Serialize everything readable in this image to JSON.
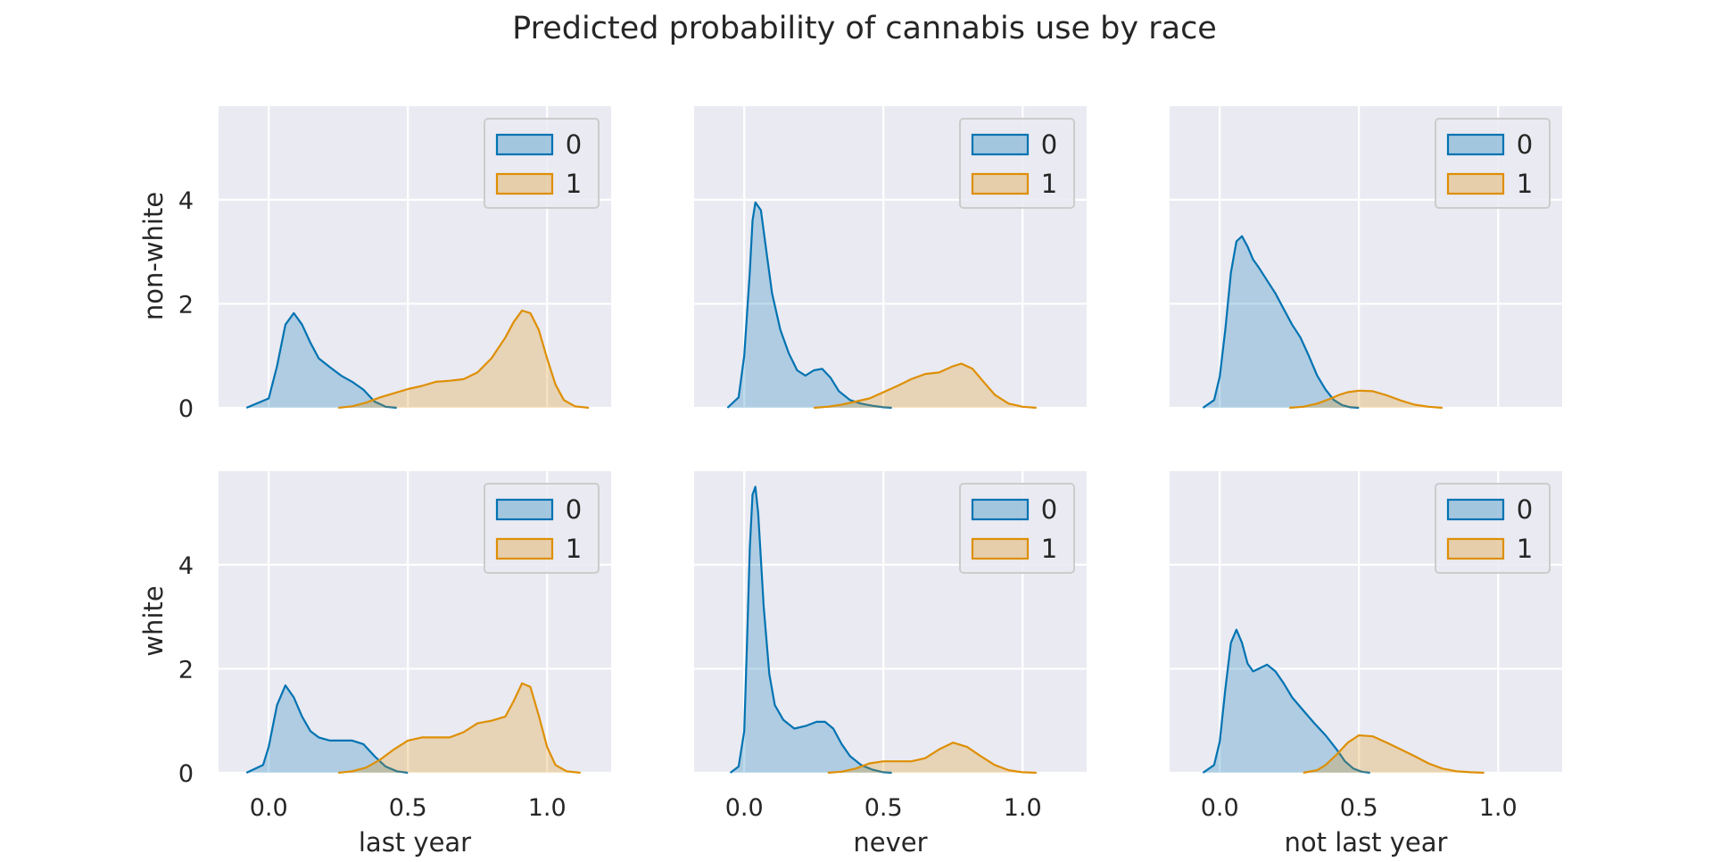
{
  "title": "Predicted probability of cannabis use by race",
  "row_labels": [
    "non-white",
    "white"
  ],
  "col_labels": [
    "last year",
    "never",
    "not last year"
  ],
  "colors": {
    "0": "#0173b2",
    "1": "#de8f05",
    "panel_bg": "#eaeaf2",
    "grid": "#ffffff"
  },
  "chart_data": {
    "type": "area",
    "kind": "kde-facet-grid",
    "title": "Predicted probability of cannabis use by race",
    "xlim": [
      -0.18,
      1.23
    ],
    "ylim": [
      0,
      5.8
    ],
    "xticks": [
      0.0,
      0.5,
      1.0
    ],
    "xtick_labels": [
      "0.0",
      "0.5",
      "1.0"
    ],
    "yticks": [
      0,
      2,
      4
    ],
    "ytick_labels": [
      "0",
      "2",
      "4"
    ],
    "grid": true,
    "legend_placement": "top-right",
    "legend_entries": [
      "0",
      "1"
    ],
    "panels": [
      {
        "row": "non-white",
        "col": "last year",
        "series": [
          {
            "name": "0",
            "x": [
              -0.08,
              0.0,
              0.03,
              0.06,
              0.09,
              0.12,
              0.15,
              0.18,
              0.22,
              0.26,
              0.3,
              0.34,
              0.38,
              0.42,
              0.46
            ],
            "y": [
              0,
              0.18,
              0.8,
              1.6,
              1.82,
              1.6,
              1.25,
              0.95,
              0.78,
              0.62,
              0.5,
              0.35,
              0.12,
              0.02,
              0
            ]
          },
          {
            "name": "1",
            "x": [
              0.25,
              0.3,
              0.35,
              0.4,
              0.45,
              0.5,
              0.55,
              0.6,
              0.65,
              0.7,
              0.75,
              0.8,
              0.85,
              0.88,
              0.91,
              0.94,
              0.97,
              1.0,
              1.03,
              1.06,
              1.1,
              1.15
            ],
            "y": [
              0,
              0.03,
              0.1,
              0.2,
              0.28,
              0.36,
              0.42,
              0.5,
              0.52,
              0.55,
              0.68,
              0.95,
              1.35,
              1.65,
              1.87,
              1.82,
              1.5,
              0.95,
              0.45,
              0.15,
              0.03,
              0
            ]
          }
        ]
      },
      {
        "row": "non-white",
        "col": "never",
        "series": [
          {
            "name": "0",
            "x": [
              -0.06,
              -0.02,
              0.0,
              0.02,
              0.03,
              0.04,
              0.06,
              0.08,
              0.1,
              0.13,
              0.16,
              0.19,
              0.22,
              0.25,
              0.28,
              0.31,
              0.34,
              0.38,
              0.42,
              0.46,
              0.5,
              0.53
            ],
            "y": [
              0,
              0.2,
              1.0,
              2.6,
              3.6,
              3.95,
              3.8,
              3.0,
              2.2,
              1.5,
              1.05,
              0.72,
              0.62,
              0.72,
              0.75,
              0.58,
              0.32,
              0.15,
              0.08,
              0.04,
              0.01,
              0
            ]
          },
          {
            "name": "1",
            "x": [
              0.25,
              0.3,
              0.35,
              0.4,
              0.45,
              0.5,
              0.55,
              0.6,
              0.65,
              0.7,
              0.75,
              0.78,
              0.82,
              0.86,
              0.9,
              0.95,
              1.0,
              1.05
            ],
            "y": [
              0,
              0.02,
              0.06,
              0.12,
              0.18,
              0.3,
              0.42,
              0.55,
              0.65,
              0.68,
              0.8,
              0.85,
              0.75,
              0.5,
              0.25,
              0.08,
              0.02,
              0
            ]
          }
        ]
      },
      {
        "row": "non-white",
        "col": "not last year",
        "series": [
          {
            "name": "0",
            "x": [
              -0.06,
              -0.02,
              0.0,
              0.02,
              0.04,
              0.06,
              0.08,
              0.1,
              0.12,
              0.14,
              0.17,
              0.2,
              0.23,
              0.26,
              0.29,
              0.32,
              0.35,
              0.38,
              0.41,
              0.44,
              0.47,
              0.5
            ],
            "y": [
              0,
              0.15,
              0.6,
              1.5,
              2.6,
              3.2,
              3.3,
              3.1,
              2.85,
              2.7,
              2.45,
              2.2,
              1.9,
              1.6,
              1.35,
              1.0,
              0.62,
              0.35,
              0.15,
              0.05,
              0.01,
              0
            ]
          },
          {
            "name": "1",
            "x": [
              0.25,
              0.3,
              0.35,
              0.4,
              0.43,
              0.46,
              0.5,
              0.55,
              0.6,
              0.65,
              0.7,
              0.75,
              0.8
            ],
            "y": [
              0,
              0.02,
              0.08,
              0.18,
              0.25,
              0.3,
              0.33,
              0.32,
              0.24,
              0.14,
              0.06,
              0.02,
              0
            ]
          }
        ]
      },
      {
        "row": "white",
        "col": "last year",
        "series": [
          {
            "name": "0",
            "x": [
              -0.08,
              -0.02,
              0.0,
              0.03,
              0.06,
              0.09,
              0.12,
              0.15,
              0.18,
              0.22,
              0.26,
              0.3,
              0.34,
              0.38,
              0.42,
              0.46,
              0.5
            ],
            "y": [
              0,
              0.15,
              0.5,
              1.3,
              1.68,
              1.45,
              1.08,
              0.8,
              0.68,
              0.62,
              0.62,
              0.62,
              0.55,
              0.32,
              0.12,
              0.03,
              0
            ]
          },
          {
            "name": "1",
            "x": [
              0.25,
              0.3,
              0.35,
              0.4,
              0.45,
              0.5,
              0.55,
              0.6,
              0.65,
              0.7,
              0.75,
              0.8,
              0.85,
              0.88,
              0.91,
              0.94,
              0.97,
              1.0,
              1.03,
              1.07,
              1.12
            ],
            "y": [
              0,
              0.03,
              0.1,
              0.25,
              0.45,
              0.62,
              0.68,
              0.68,
              0.68,
              0.78,
              0.95,
              1.0,
              1.08,
              1.38,
              1.72,
              1.65,
              1.1,
              0.5,
              0.15,
              0.03,
              0
            ]
          }
        ]
      },
      {
        "row": "white",
        "col": "never",
        "series": [
          {
            "name": "0",
            "x": [
              -0.05,
              -0.02,
              0.0,
              0.01,
              0.02,
              0.03,
              0.04,
              0.05,
              0.07,
              0.09,
              0.11,
              0.14,
              0.18,
              0.22,
              0.26,
              0.29,
              0.32,
              0.35,
              0.38,
              0.42,
              0.46,
              0.5,
              0.53
            ],
            "y": [
              0,
              0.12,
              0.8,
              2.5,
              4.3,
              5.35,
              5.5,
              5.0,
              3.2,
              1.9,
              1.3,
              1.02,
              0.85,
              0.9,
              0.98,
              0.98,
              0.85,
              0.55,
              0.32,
              0.15,
              0.06,
              0.01,
              0
            ]
          },
          {
            "name": "1",
            "x": [
              0.3,
              0.35,
              0.4,
              0.45,
              0.5,
              0.55,
              0.6,
              0.65,
              0.7,
              0.75,
              0.8,
              0.85,
              0.9,
              0.95,
              1.0,
              1.05
            ],
            "y": [
              0,
              0.02,
              0.08,
              0.18,
              0.22,
              0.22,
              0.22,
              0.28,
              0.45,
              0.58,
              0.5,
              0.32,
              0.15,
              0.05,
              0.01,
              0
            ]
          }
        ]
      },
      {
        "row": "white",
        "col": "not last year",
        "series": [
          {
            "name": "0",
            "x": [
              -0.06,
              -0.02,
              0.0,
              0.02,
              0.04,
              0.06,
              0.08,
              0.1,
              0.12,
              0.14,
              0.17,
              0.2,
              0.23,
              0.26,
              0.3,
              0.34,
              0.38,
              0.42,
              0.45,
              0.48,
              0.51,
              0.54
            ],
            "y": [
              0,
              0.15,
              0.6,
              1.6,
              2.5,
              2.75,
              2.5,
              2.1,
              1.95,
              2.0,
              2.08,
              1.95,
              1.72,
              1.45,
              1.2,
              0.95,
              0.72,
              0.45,
              0.22,
              0.08,
              0.02,
              0
            ]
          },
          {
            "name": "1",
            "x": [
              0.3,
              0.35,
              0.38,
              0.42,
              0.46,
              0.5,
              0.55,
              0.6,
              0.65,
              0.7,
              0.75,
              0.8,
              0.85,
              0.9,
              0.95
            ],
            "y": [
              0,
              0.05,
              0.15,
              0.35,
              0.58,
              0.72,
              0.7,
              0.58,
              0.45,
              0.32,
              0.18,
              0.08,
              0.03,
              0.01,
              0
            ]
          }
        ]
      }
    ]
  }
}
